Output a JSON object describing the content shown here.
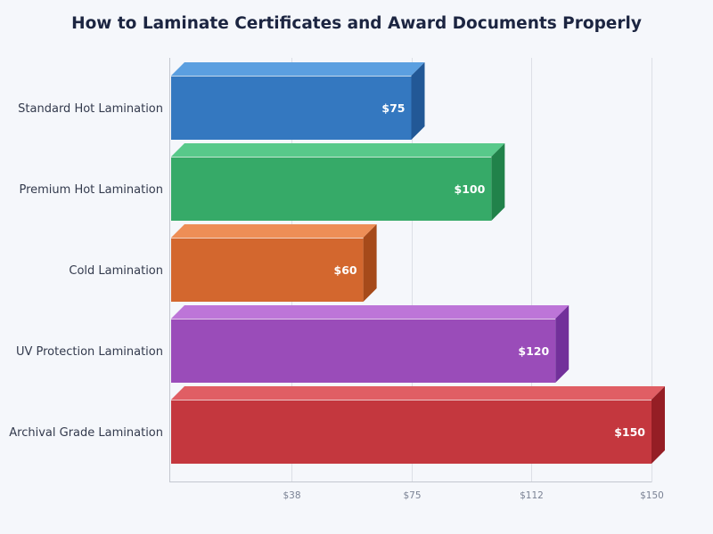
{
  "title": "How to Laminate Certificates and Award Documents Properly",
  "chart_data": {
    "type": "bar",
    "orientation": "horizontal",
    "style": "3d",
    "title": "How to Laminate Certificates and Award Documents Properly",
    "xlabel": "",
    "ylabel": "",
    "categories": [
      "Standard Hot Lamination",
      "Premium Hot Lamination",
      "Cold Lamination",
      "UV Protection Lamination",
      "Archival Grade Lamination"
    ],
    "values": [
      75,
      100,
      60,
      120,
      150
    ],
    "value_labels": [
      "$75",
      "$100",
      "$60",
      "$120",
      "$150"
    ],
    "colors": [
      {
        "front": "#3478c0",
        "top": "#5b9fe0",
        "side": "#225896"
      },
      {
        "front": "#36aa68",
        "top": "#58c98a",
        "side": "#21824a"
      },
      {
        "front": "#d3672e",
        "top": "#ee8e56",
        "side": "#a64a1a"
      },
      {
        "front": "#9a4cb9",
        "top": "#bd75d8",
        "side": "#72309a"
      },
      {
        "front": "#c4373e",
        "top": "#e05e64",
        "side": "#951e25"
      }
    ],
    "xlim": [
      0,
      150
    ],
    "xticks": [
      37.5,
      75,
      112.5,
      150
    ],
    "xtick_labels": [
      "$38",
      "$75",
      "$112",
      "$150"
    ],
    "grid": true,
    "legend": false
  }
}
